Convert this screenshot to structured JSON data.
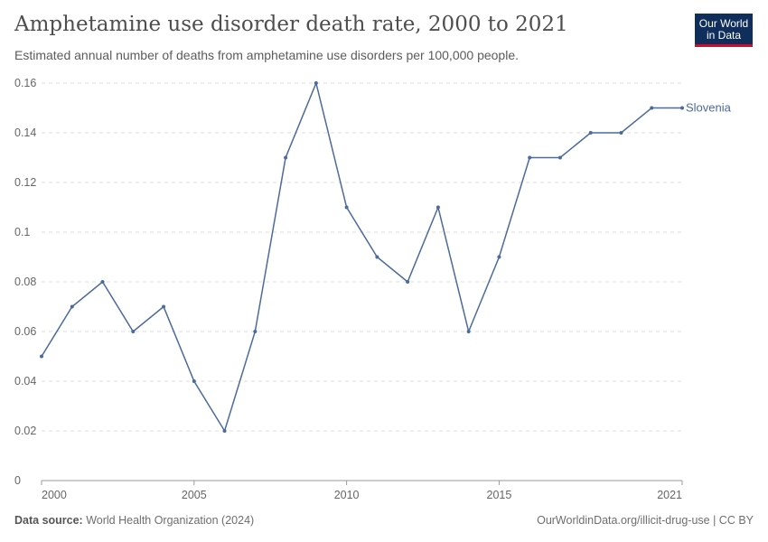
{
  "title": "Amphetamine use disorder death rate, 2000 to 2021",
  "subtitle": "Estimated annual number of deaths from amphetamine use disorders per 100,000 people.",
  "logo": {
    "line1": "Our World",
    "line2": "in Data",
    "colors": {
      "bg": "#0f2e5b",
      "accent": "#c8102e"
    }
  },
  "footer": {
    "source_label": "Data source:",
    "source": "World Health Organization (2024)",
    "right": "OurWorldinData.org/illicit-drug-use | CC BY"
  },
  "chart_data": {
    "type": "line",
    "title": "Amphetamine use disorder death rate, 2000 to 2021",
    "xlim": [
      2000,
      2021
    ],
    "ylim": [
      0,
      0.16
    ],
    "x_ticks": [
      "2000",
      "2005",
      "2010",
      "2015",
      "2021"
    ],
    "y_ticks": [
      "0",
      "0.02",
      "0.04",
      "0.06",
      "0.08",
      "0.1",
      "0.12",
      "0.14",
      "0.16"
    ],
    "grid": "horizontal dashed",
    "series": [
      {
        "name": "Slovenia",
        "color": "#4c6a9c",
        "x": [
          2000,
          2001,
          2002,
          2003,
          2004,
          2005,
          2006,
          2007,
          2008,
          2009,
          2010,
          2011,
          2012,
          2013,
          2014,
          2015,
          2016,
          2017,
          2018,
          2019,
          2020,
          2021
        ],
        "values": [
          0.05,
          0.07,
          0.08,
          0.06,
          0.07,
          0.04,
          0.02,
          0.06,
          0.13,
          0.16,
          0.11,
          0.09,
          0.08,
          0.11,
          0.06,
          0.09,
          0.13,
          0.13,
          0.14,
          0.14,
          0.15,
          0.15
        ]
      }
    ]
  }
}
